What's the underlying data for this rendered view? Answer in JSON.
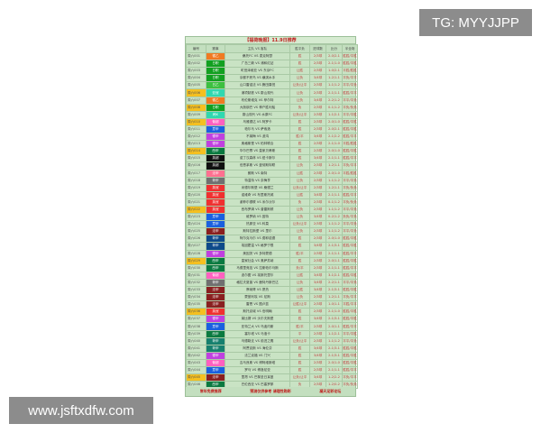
{
  "title": "【福荷晚报】11.9日推荐",
  "headers": [
    "编号",
    "赛事",
    "主队 VS 客队",
    "胜平负",
    "进球数",
    "比分",
    "半全场"
  ],
  "rows": [
    [
      "周六001",
      "德乙",
      "#f07a22",
      "桑托FC VS 麦克阿瑟",
      "胜",
      "2/3球",
      "2-0/2-1",
      "胜胜/平胜"
    ],
    [
      "周六002",
      "日职",
      "#12a020",
      "广岛三箭 VS 浦和红钻",
      "胜",
      "2/3球",
      "2-1/1-0",
      "胜胜/平胜"
    ],
    [
      "周六003",
      "日职",
      "#12a020",
      "町田泽维亚 VS 东京FC",
      "让胜",
      "2/3球",
      "1-0/2-1",
      "平胜/胜胜"
    ],
    [
      "周六004",
      "日职",
      "#12a020",
      "京都不死鸟 VS 横滨水手",
      "让负",
      "3/4球",
      "1-2/1-1",
      "平负/平平"
    ],
    [
      "周六005",
      "日乙",
      "#3cc040",
      "山口雷诺法 VS 磐田喜悦",
      "让负/让平",
      "2/3球",
      "1-1/1-2",
      "平平/平负"
    ],
    [
      "周六006",
      "亚冠",
      "#30d8b0",
      "浦项制铁 VS 蔚山现代",
      "让负",
      "2/3球",
      "2-1/1-1",
      "胜胜/平平"
    ],
    [
      "周六007",
      "德乙",
      "#f07a22",
      "布伦斯维克 VS 菲尔特",
      "让负",
      "3/4球",
      "2-2/1-2",
      "平平/平负"
    ],
    [
      "周六008",
      "日职",
      "#12a020",
      "大阪钢巴 VS 神户胜利船",
      "负",
      "2/3球",
      "0-1/1-2",
      "平负/负负"
    ],
    [
      "周六009",
      "韩K",
      "#30d8b0",
      "蔚山现代 VS 水原FC",
      "让负/让平",
      "2/3球",
      "1-1/2-1",
      "平平/平胜"
    ],
    [
      "周六010",
      "葡超",
      "#ff60c0",
      "乌雅德达 VS 阿罗卡",
      "胜",
      "2/3球",
      "2-0/1-0",
      "胜胜/平胜"
    ],
    [
      "周六011",
      "意甲",
      "#1a60e0",
      "帕尔马 VS 萨索洛",
      "胜",
      "2/3球",
      "2-0/2-1",
      "胜胜/平胜"
    ],
    [
      "周六012",
      "德甲",
      "#c040e0",
      "不莱梅 VS 波鸿",
      "胜/平",
      "3/4球",
      "2-1/2-2",
      "胜胜/平平"
    ],
    [
      "周六013",
      "德甲",
      "#c040e0",
      "奥格斯堡 VS 柏林联合",
      "胜",
      "2/3球",
      "2-1/1-0",
      "平胜/胜胜"
    ],
    [
      "周六014",
      "西甲",
      "#0a7a40",
      "毕尔巴鄂 VS 皇家贝蒂斯",
      "胜",
      "2/3球",
      "2-0/1-0",
      "胜胜/平胜"
    ],
    [
      "周六015",
      "英超",
      "#101010",
      "诺丁汉森林 VS 纽卡斯尔",
      "胜",
      "3/4球",
      "2-1/1-1",
      "胜胜/平平"
    ],
    [
      "周六016",
      "英超",
      "#101010",
      "伯恩茅斯 VS 曼彻斯特联",
      "让负",
      "2/3球",
      "1-2/1-1",
      "平负/平平"
    ],
    [
      "周六017",
      "法甲",
      "#ff7090",
      "朗斯 VS 南特",
      "让胜",
      "2/3球",
      "2-0/1-0",
      "平胜/胜胜"
    ],
    [
      "周六018",
      "荷甲",
      "#707070",
      "特温特 VS 奈梅亨",
      "让负",
      "2/3球",
      "1-1/1-2",
      "平平/平负"
    ],
    [
      "周六019",
      "英冠",
      "#f03030",
      "米德尔斯堡 VS 桑德兰",
      "让负/让平",
      "2/3球",
      "1-2/1-1",
      "平负/负负"
    ],
    [
      "周六020",
      "英冠",
      "#f03030",
      "诺维奇 VS 布里斯托城",
      "让胜",
      "3/4球",
      "2-1/1-1",
      "胜胜/平平"
    ],
    [
      "周六021",
      "英冠",
      "#f03030",
      "谢菲尔德联 VS 米尔沃尔",
      "负",
      "2/3球",
      "0-1/1-2",
      "平负/负负"
    ],
    [
      "周六022",
      "英冠",
      "#f03030",
      "西布罗姆 VS 普雷斯顿",
      "让负",
      "2/3球",
      "1-1/1-2",
      "平平/平负"
    ],
    [
      "周六023",
      "意甲",
      "#1a60e0",
      "维罗纳 VS 因特",
      "让负",
      "3/4球",
      "0-2/1-2",
      "负负/平负"
    ],
    [
      "周六024",
      "意甲",
      "#1a60e0",
      "热那亚 VS 科莫",
      "让负/让平",
      "2/3球",
      "1-1/1-2",
      "平平/平负"
    ],
    [
      "周六025",
      "法甲",
      "#8a2020",
      "斯特拉斯堡 VS 里尔",
      "让负",
      "2/3球",
      "1-1/1-2",
      "平平/平负"
    ],
    [
      "周六026",
      "荷甲",
      "#0d4a8a",
      "阿尔克马尔 VS 费耶诺德",
      "胜",
      "2/3球",
      "2-0/1-0",
      "胜胜/平胜"
    ],
    [
      "周六027",
      "荷甲",
      "#0d4a8a",
      "埃因霍温 VS 格罗宁根",
      "胜",
      "3/4球",
      "2-1/3-1",
      "胜胜/平胜"
    ],
    [
      "周六028",
      "德甲",
      "#c040e0",
      "美因茨 VS 多特蒙德",
      "胜/平",
      "2/3球",
      "2-1/1-1",
      "胜胜/平平"
    ],
    [
      "周六029",
      "西甲",
      "#0a7a40",
      "皇家社会 VS 奥萨苏纳",
      "胜",
      "2/3球",
      "2-0/1-1",
      "胜胜/平胜"
    ],
    [
      "周六030",
      "西甲",
      "#0a7a40",
      "马德里竞技 VS 拉斯帕尔马斯",
      "负/平",
      "2/3球",
      "2-1/1-1",
      "胜胜/平平"
    ],
    [
      "周六031",
      "葡超",
      "#ff60c0",
      "波尔图 VS 埃斯托里尔",
      "让胜",
      "3/4球",
      "3-1/2-1",
      "胜胜/平胜"
    ],
    [
      "周六032",
      "荷甲",
      "#707070",
      "格拉夫夏普 VS 鹿特丹斯巴达",
      "让负",
      "3/4球",
      "2-2/1-1",
      "平平/平负"
    ],
    [
      "周六033",
      "法甲",
      "#8a2020",
      "摩纳哥 VS 昂热",
      "让胜",
      "3/4球",
      "2-1/3-1",
      "胜胜/平胜"
    ],
    [
      "周六034",
      "法甲",
      "#8a2020",
      "蒙彼利埃 VS 尼斯",
      "让负",
      "2/3球",
      "1-2/1-1",
      "平负/平平"
    ],
    [
      "周六035",
      "法甲",
      "#8a2020",
      "雷恩 VS 图卢兹",
      "让胜/让平",
      "2/3球",
      "1-0/1-1",
      "平胜/平平"
    ],
    [
      "周六036",
      "英冠",
      "#f03030",
      "斯托克城 VS 伯明翰",
      "胜",
      "2/3球",
      "2-1/1-0",
      "胜胜/平胜"
    ],
    [
      "周六037",
      "德甲",
      "#c040e0",
      "莱比锡 VS 沃尔夫斯堡",
      "胜",
      "3/4球",
      "2-1/3-1",
      "胜胜/平胜"
    ],
    [
      "周六038",
      "意甲",
      "#1a60e0",
      "亚特兰大 VS 乌迪内斯",
      "胜/平",
      "2/3球",
      "2-0/1-1",
      "胜胜/平平"
    ],
    [
      "周六039",
      "西甲",
      "#0a7a40",
      "塞尔塔 VS 马洛卡",
      "平",
      "2/3球",
      "1-1/2-1",
      "平平/平胜"
    ],
    [
      "周六040",
      "荷甲",
      "#16806e",
      "乌德勒支 VS 前进之鹰",
      "让负/让平",
      "2/3球",
      "1-1/1-2",
      "平平/平负"
    ],
    [
      "周六041",
      "荷甲",
      "#16806e",
      "阿贾克斯 VS 海伦芬",
      "胜",
      "3/4球",
      "2-1/3-1",
      "胜胜/平胜"
    ],
    [
      "周六042",
      "德甲",
      "#c040e0",
      "法兰克福 VS 门兴",
      "胜",
      "3/4球",
      "2-1/3-1",
      "胜胜/平胜"
    ],
    [
      "周六043",
      "葡超",
      "#ff60c0",
      "吉马良斯 VS 博阿维斯塔",
      "胜",
      "2/3球",
      "2-0/1-0",
      "胜胜/平胜"
    ],
    [
      "周六044",
      "意甲",
      "#1a60e0",
      "罗马 VS 博洛尼亚",
      "胜",
      "2/3球",
      "2-1/1-1",
      "胜胜/平平"
    ],
    [
      "周六045",
      "法甲",
      "#8a2020",
      "里昂 VS 巴黎圣日耳曼",
      "让负/让平",
      "3/4球",
      "1-2/2-2",
      "平负/平平"
    ],
    [
      "周六046",
      "西甲",
      "#0a7a40",
      "巴伦西亚 VS 巴塞罗那",
      "负",
      "2/3球",
      "1-2/0-2",
      "平负/负负"
    ]
  ],
  "footer": [
    "常年免费推荐",
    "预测仅供参考 请理性购彩",
    "凝天足彩论坛"
  ],
  "overlay": {
    "tg": "TG: MYYJJPP",
    "site": "www.jsftxdfw.com"
  },
  "colors": {
    "background": "#c9e3c4",
    "result_text": "#c04040",
    "footer_text": "#c01818"
  }
}
